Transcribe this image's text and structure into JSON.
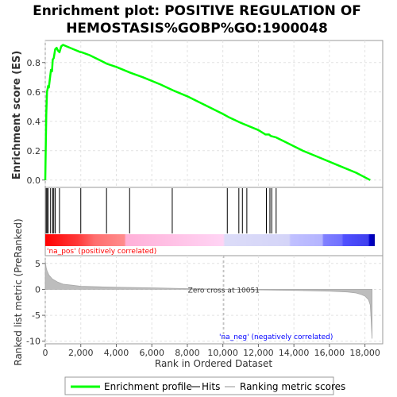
{
  "chart_data": {
    "type": "line",
    "title_lines": [
      "Enrichment plot: POSITIVE REGULATION OF",
      "HEMOSTASIS%GOBP%GO:1900048"
    ],
    "es_panel": {
      "ylabel": "Enrichment score (ES)",
      "yticks": [
        "0.0",
        "0.2",
        "0.4",
        "0.6",
        "0.8"
      ],
      "ylim": [
        -0.05,
        0.95
      ],
      "series": [
        {
          "name": "Enrichment profile",
          "color": "#00ff00",
          "x": [
            0,
            30,
            60,
            100,
            160,
            200,
            320,
            380,
            420,
            480,
            560,
            640,
            720,
            800,
            900,
            1000,
            1200,
            1600,
            2000,
            2050,
            2500,
            3000,
            3500,
            4000,
            4800,
            5500,
            6500,
            7200,
            8000,
            9000,
            10000,
            10300,
            11000,
            12000,
            12400,
            12600,
            12700,
            13000,
            13500,
            14500,
            15500,
            16500,
            17500,
            18300
          ],
          "y": [
            0.0,
            0.25,
            0.45,
            0.6,
            0.64,
            0.63,
            0.75,
            0.74,
            0.82,
            0.83,
            0.89,
            0.9,
            0.88,
            0.87,
            0.91,
            0.92,
            0.91,
            0.89,
            0.87,
            0.87,
            0.85,
            0.82,
            0.79,
            0.77,
            0.73,
            0.7,
            0.65,
            0.61,
            0.57,
            0.51,
            0.45,
            0.43,
            0.39,
            0.34,
            0.31,
            0.31,
            0.3,
            0.29,
            0.26,
            0.2,
            0.15,
            0.1,
            0.05,
            0.0
          ]
        }
      ]
    },
    "hits": [
      50,
      100,
      160,
      300,
      420,
      480,
      560,
      800,
      2000,
      3450,
      4750,
      7150,
      10250,
      10900,
      11100,
      11350,
      12450,
      12650,
      12750,
      13000
    ],
    "ranked_metric": {
      "ylabel": "Ranked list metric (PreRanked)",
      "yticks": [
        "5",
        "0",
        "-5",
        "-10"
      ],
      "ylim": [
        -10.5,
        6.5
      ],
      "x": [
        0,
        50,
        100,
        200,
        400,
        700,
        1000,
        1500,
        2000,
        3000,
        4000,
        6000,
        8000,
        10000,
        10051,
        12000,
        14000,
        16000,
        17000,
        17500,
        17800,
        18000,
        18200,
        18300,
        18350,
        18400
      ],
      "y": [
        5.5,
        4.2,
        3.6,
        2.8,
        2.0,
        1.4,
        1.0,
        0.8,
        0.6,
        0.5,
        0.4,
        0.3,
        0.15,
        0.05,
        0.0,
        -0.1,
        -0.2,
        -0.35,
        -0.5,
        -0.7,
        -1.0,
        -1.3,
        -2.0,
        -3.0,
        -6.0,
        -9.5
      ],
      "zero_cross_label": "Zero cross at 10051",
      "pos_label": "'na_pos' (positively correlated)",
      "neg_label": "'na_neg' (negatively correlated)",
      "zero_cross_x": 10051
    },
    "x_axis": {
      "label": "Rank in Ordered Dataset",
      "xlim": [
        0,
        19000
      ],
      "ticks": [
        "0",
        "2,000",
        "4,000",
        "6,000",
        "8,000",
        "10,000",
        "12,000",
        "14,000",
        "16,000",
        "18,000"
      ],
      "tick_values": [
        0,
        2000,
        4000,
        6000,
        8000,
        10000,
        12000,
        14000,
        16000,
        18000
      ]
    },
    "legend": {
      "items": [
        {
          "label": "Enrichment profile",
          "color": "#00ff00"
        },
        {
          "label": "Hits",
          "color": "#808080"
        },
        {
          "label": "Ranking metric scores",
          "color": "#c8c8c8"
        }
      ]
    },
    "colors": {
      "pos_label": "#ff0000",
      "neg_label": "#0000ff",
      "gradient_stops": [
        "#ff0000",
        "#ff6666",
        "#ff9999",
        "#ffcccc",
        "#ffdcff",
        "#dcdcff",
        "#c0c0ff",
        "#8080ff",
        "#5050ff",
        "#0000cc"
      ]
    }
  }
}
